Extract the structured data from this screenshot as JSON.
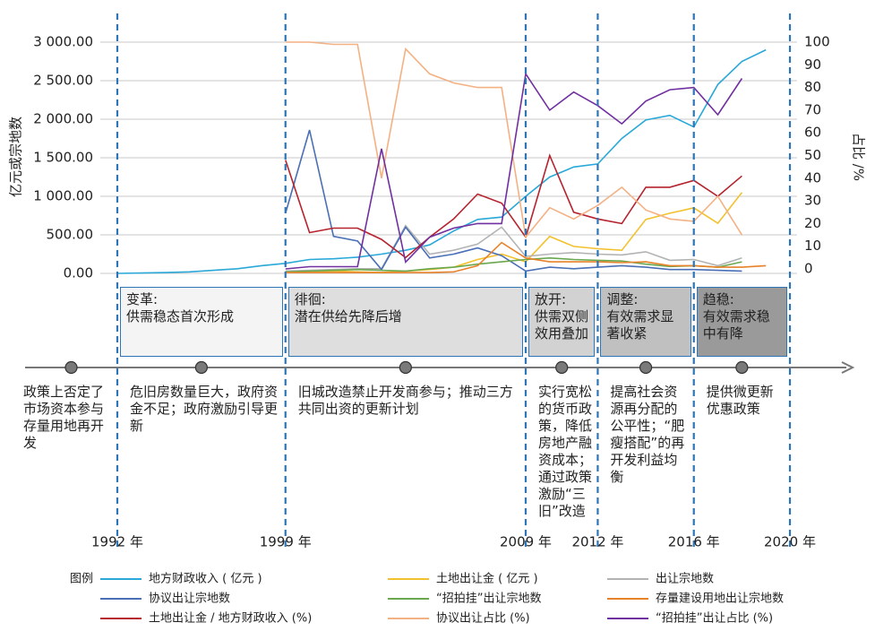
{
  "chart_data": {
    "type": "line",
    "ylabel": "亿元或宗地数",
    "y2label": "占比 /%",
    "legend_title": "图例",
    "x": [
      1992,
      1993,
      1994,
      1995,
      1996,
      1997,
      1998,
      1999,
      2000,
      2001,
      2002,
      2003,
      2004,
      2005,
      2006,
      2007,
      2008,
      2009,
      2010,
      2011,
      2012,
      2013,
      2014,
      2015,
      2016,
      2017,
      2018,
      2019
    ],
    "xlim": [
      1992,
      2020
    ],
    "xticks": [
      {
        "value": 1992,
        "label": "1992 年"
      },
      {
        "value": 1999,
        "label": "1999 年"
      },
      {
        "value": 2009,
        "label": "2009 年"
      },
      {
        "value": 2012,
        "label": "2012 年"
      },
      {
        "value": 2016,
        "label": "2016 年"
      },
      {
        "value": 2020,
        "label": "2020 年"
      }
    ],
    "ylim": [
      0,
      3000
    ],
    "yticks": [
      {
        "value": 0,
        "label": "0.00"
      },
      {
        "value": 500,
        "label": "500.00"
      },
      {
        "value": 1000,
        "label": "1 000.00"
      },
      {
        "value": 1500,
        "label": "1 500.00"
      },
      {
        "value": 2000,
        "label": "2 000.00"
      },
      {
        "value": 2500,
        "label": "2 500.00"
      },
      {
        "value": 3000,
        "label": "3 000.00"
      }
    ],
    "y2lim": [
      0,
      100
    ],
    "y2ticks": [
      0,
      10,
      20,
      30,
      40,
      50,
      60,
      70,
      80,
      90,
      100
    ],
    "grid": true,
    "series": [
      {
        "name": "地方财政收入 ( 亿元 )",
        "color": "#2aa8d8",
        "values": [
          0,
          5,
          10,
          20,
          40,
          60,
          100,
          130,
          180,
          190,
          210,
          250,
          300,
          370,
          550,
          700,
          730,
          1000,
          1250,
          1380,
          1420,
          1750,
          1990,
          2050,
          1900,
          2450,
          2750,
          2900
        ]
      },
      {
        "name": "土地出让金 ( 亿元 )",
        "color": "#f2c12e",
        "values": [
          null,
          null,
          null,
          null,
          null,
          null,
          null,
          20,
          20,
          30,
          20,
          10,
          30,
          50,
          80,
          180,
          250,
          150,
          480,
          350,
          320,
          300,
          700,
          780,
          850,
          650,
          1050,
          null
        ]
      },
      {
        "name": "出让宗地数",
        "color": "#b3b3b3",
        "values": [
          null,
          null,
          null,
          null,
          null,
          null,
          null,
          30,
          40,
          50,
          60,
          60,
          620,
          250,
          300,
          380,
          600,
          220,
          250,
          270,
          250,
          240,
          280,
          170,
          180,
          100,
          200,
          null
        ]
      },
      {
        "name": "协议出让宗地数",
        "color": "#4a6fb5",
        "values": [
          null,
          null,
          null,
          null,
          null,
          null,
          null,
          780,
          1860,
          480,
          420,
          50,
          600,
          200,
          250,
          330,
          230,
          30,
          80,
          60,
          80,
          100,
          80,
          50,
          50,
          40,
          30,
          null
        ]
      },
      {
        "name": "“招拍挂”出让宗地数",
        "color": "#6aa84f",
        "values": [
          null,
          null,
          null,
          null,
          null,
          null,
          null,
          20,
          30,
          40,
          50,
          40,
          30,
          60,
          80,
          120,
          150,
          180,
          200,
          180,
          170,
          160,
          120,
          90,
          100,
          80,
          150,
          null
        ]
      },
      {
        "name": "存量建设用地出让宗地数",
        "color": "#e8822a",
        "values": [
          null,
          null,
          null,
          null,
          null,
          null,
          null,
          10,
          10,
          10,
          10,
          10,
          10,
          10,
          20,
          100,
          400,
          200,
          150,
          150,
          150,
          140,
          150,
          100,
          100,
          80,
          80,
          100
        ]
      },
      {
        "name": "土地出让金 / 地方财政收入 (%)",
        "color": "#b5232e",
        "axis": "y2",
        "values": [
          null,
          null,
          null,
          null,
          null,
          null,
          null,
          48,
          16,
          18,
          18,
          13,
          5,
          14,
          22,
          33,
          29,
          14,
          50,
          25,
          22,
          20,
          36,
          36,
          39,
          32,
          41,
          null
        ]
      },
      {
        "name": "协议出让占比 (%)",
        "color": "#f4b183",
        "axis": "y2",
        "values": [
          null,
          null,
          null,
          null,
          null,
          null,
          null,
          100,
          100,
          99,
          99,
          40,
          97,
          86,
          82,
          80,
          80,
          14,
          27,
          22,
          28,
          36,
          26,
          22,
          21,
          32,
          15,
          null
        ]
      },
      {
        "name": "“招拍挂”出让占比 (%)",
        "color": "#7030a0",
        "axis": "y2",
        "values": [
          null,
          null,
          null,
          null,
          null,
          null,
          null,
          0,
          1,
          1,
          1,
          53,
          3,
          14,
          18,
          20,
          20,
          86,
          70,
          78,
          72,
          64,
          74,
          79,
          80,
          68,
          84,
          null
        ]
      }
    ]
  },
  "timeline": {
    "segments": [
      {
        "policy": "政策上否定了市场资本参与存量用地再开发"
      },
      {
        "stage": "变革:",
        "stage_desc": "供需稳态首次形成",
        "policy": "危旧房数量巨大，政府资金不足；政府激励引导更新"
      },
      {
        "stage": "徘徊:",
        "stage_desc": "潜在供给先降后增",
        "policy": "旧城改造禁止开发商参与；推动三方共同出资的更新计划"
      },
      {
        "stage": "放开:",
        "stage_desc": "供需双侧效用叠加",
        "policy": "实行宽松的货币政策，降低房地产融资成本；通过政策激励“三旧”改造"
      },
      {
        "stage": "调整:",
        "stage_desc": "有效需求显著收紧",
        "policy": "提高社会资源再分配的公平性；“肥瘦搭配”的再开发利益均衡"
      },
      {
        "stage": "趋稳:",
        "stage_desc": "有效需求稳中有降",
        "policy": "提供微更新优惠政策"
      }
    ]
  }
}
